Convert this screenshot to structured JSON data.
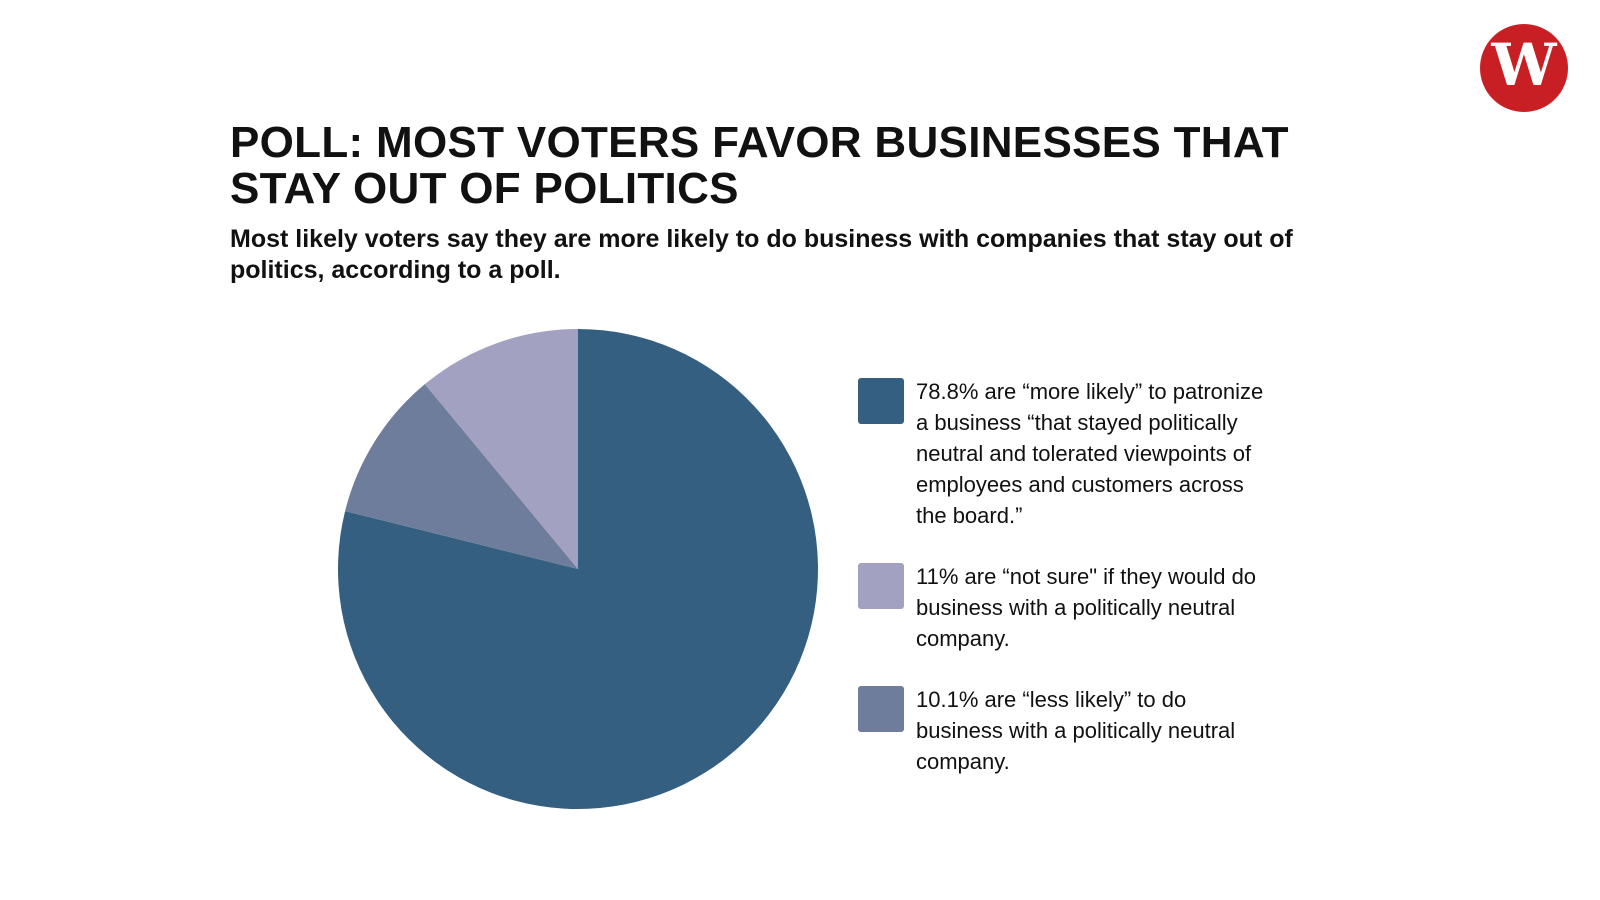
{
  "logo": {
    "letter": "W",
    "color": "#c81f25"
  },
  "chart_data": {
    "type": "pie",
    "title": "POLL: MOST VOTERS FAVOR BUSINESSES THAT STAY OUT OF POLITICS",
    "subtitle": "Most likely voters say they are more likely to do business with companies that stay out of politics, according to a poll.",
    "slices": [
      {
        "value": 78.8,
        "color": "#355f80",
        "label": "78.8% are “more likely” to patronize a business “that stayed politically neutral and tolerated viewpoints of employees and customers across the board.”"
      },
      {
        "value": 11,
        "color": "#a3a1c1",
        "label": "11% are “not sure\" if they would do business with a politically neutral company."
      },
      {
        "value": 10.1,
        "color": "#6e7d9c",
        "label": "10.1% are “less likely” to do business with a politically neutral company."
      }
    ],
    "legend_position": "right",
    "draw_order": [
      0,
      2,
      1
    ]
  }
}
